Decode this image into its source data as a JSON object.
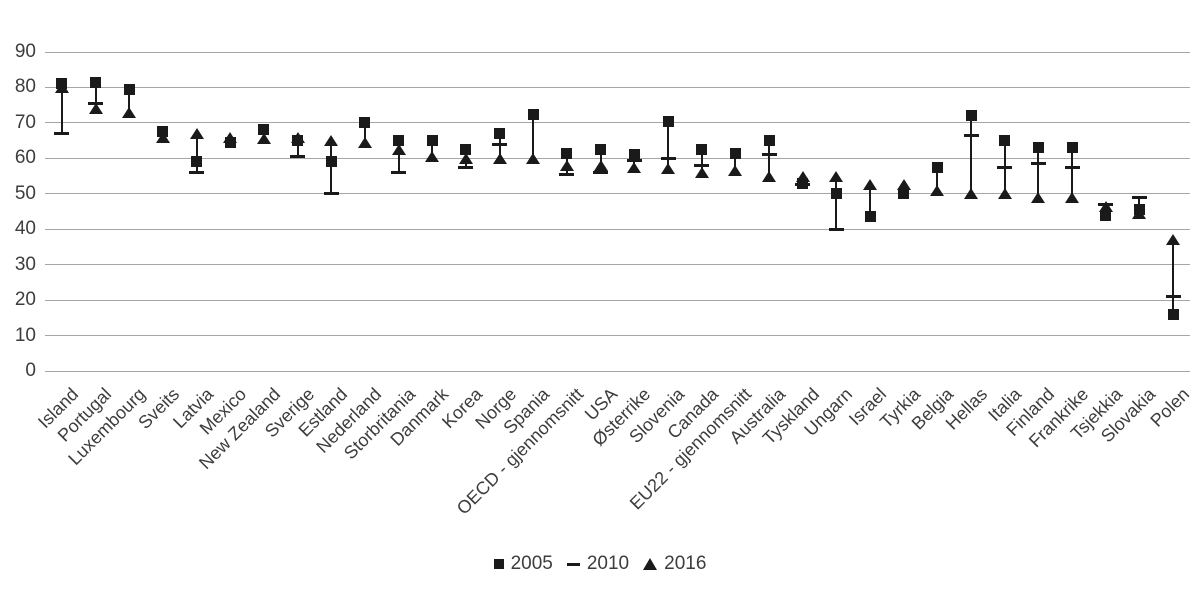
{
  "chart_data": {
    "type": "scatter",
    "title": "",
    "xlabel": "",
    "ylabel": "",
    "ylim": [
      0,
      90
    ],
    "yticks": [
      0,
      10,
      20,
      30,
      40,
      50,
      60,
      70,
      80,
      90
    ],
    "grid": true,
    "legend_position": "bottom",
    "marker_color": "#1a1a1a",
    "gridline_color": "#a6a6a6",
    "text_color": "#3d3d3d",
    "categories": [
      "Island",
      "Portugal",
      "Luxembourg",
      "Sveits",
      "Latvia",
      "Mexico",
      "New Zealand",
      "Sverige",
      "Estland",
      "Nederland",
      "Storbritania",
      "Danmark",
      "Korea",
      "Norge",
      "Spania",
      "OECD - gjennomsnitt",
      "USA",
      "Østerrike",
      "Slovenia",
      "Canada",
      "EU22 - gjennomsnitt",
      "Australia",
      "Tyskland",
      "Ungarn",
      "Israel",
      "Tyrkia",
      "Belgia",
      "Hellas",
      "Italia",
      "Finland",
      "Frankrike",
      "Tsjekkia",
      "Slovakia",
      "Polen"
    ],
    "series": [
      {
        "name": "2005",
        "marker": "square",
        "values": [
          81,
          81.5,
          79.5,
          67.5,
          59,
          64.5,
          68,
          65,
          59,
          70,
          65,
          65,
          62.5,
          67,
          72.5,
          61.5,
          62.5,
          61,
          70.5,
          62.5,
          61.5,
          65,
          53,
          50,
          43.5,
          50,
          57.5,
          72,
          65,
          63,
          63,
          44,
          45.5,
          16
        ]
      },
      {
        "name": "2010",
        "marker": "dash",
        "values": [
          67,
          75.5,
          null,
          null,
          56,
          null,
          null,
          60.5,
          50,
          null,
          56,
          null,
          57.5,
          64,
          null,
          55.5,
          56,
          59.5,
          60,
          58,
          null,
          61,
          52.5,
          40,
          null,
          null,
          null,
          66.5,
          57.5,
          58.5,
          57.5,
          47,
          49,
          21
        ]
      },
      {
        "name": "2016",
        "marker": "triangle",
        "values": [
          80,
          74,
          73,
          66,
          67,
          66,
          65.5,
          66,
          65,
          64.5,
          62.5,
          60.5,
          60,
          60,
          60,
          58,
          58,
          57.5,
          57,
          56,
          56.5,
          55,
          55,
          55,
          52.5,
          52.5,
          51,
          50,
          50,
          49,
          49,
          46.5,
          44.5,
          37
        ]
      }
    ]
  }
}
